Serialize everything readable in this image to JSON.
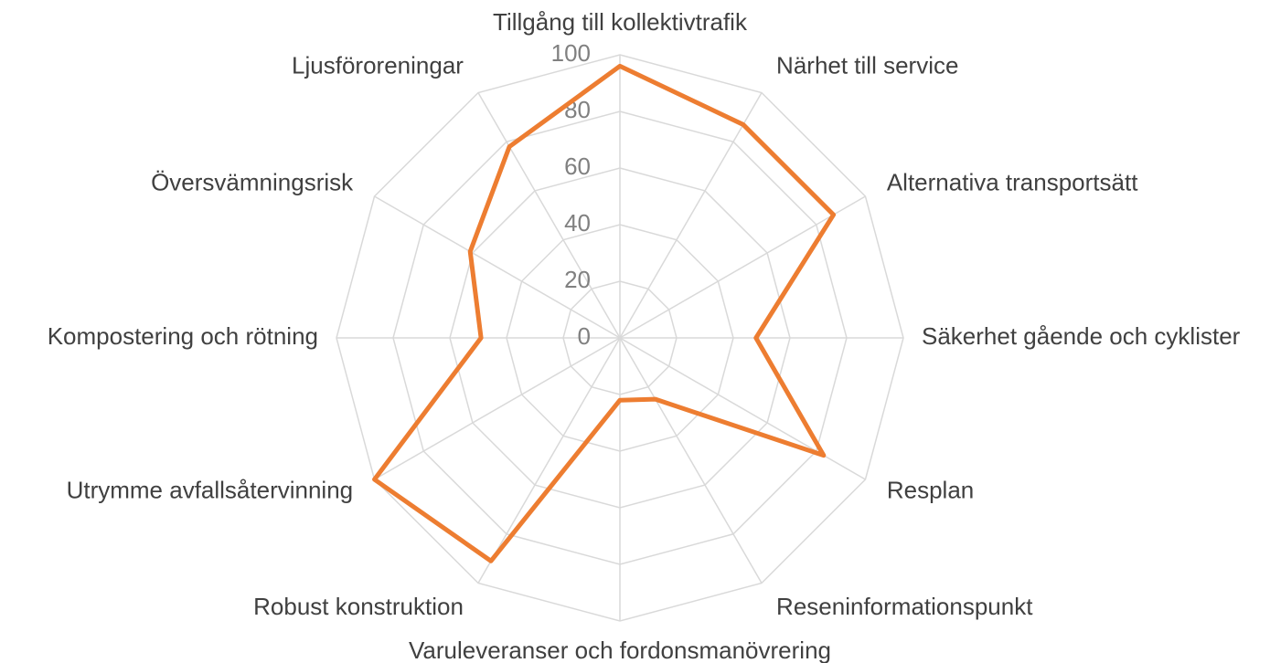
{
  "chart_data": {
    "type": "radar",
    "categories": [
      "Tillgång till kollektivtrafik",
      "Närhet till service",
      "Alternativa transportsätt",
      "Säkerhet gående och cyklister",
      "Resplan",
      "Reseninformationspunkt",
      "Varuleveranser och fordonsmanövrering",
      "Robust konstruktion",
      "Utrymme avfallsåtervinning",
      "Kompostering och rötning",
      "Översvämningsrisk",
      "Ljusföroreningar"
    ],
    "values": [
      96,
      87,
      87,
      48,
      83,
      25,
      22,
      91,
      100,
      49,
      61,
      78
    ],
    "color": "#ed7d31",
    "ylim": [
      0,
      100
    ],
    "yticks": [
      0,
      20,
      40,
      60,
      80,
      100
    ],
    "grid": true
  }
}
